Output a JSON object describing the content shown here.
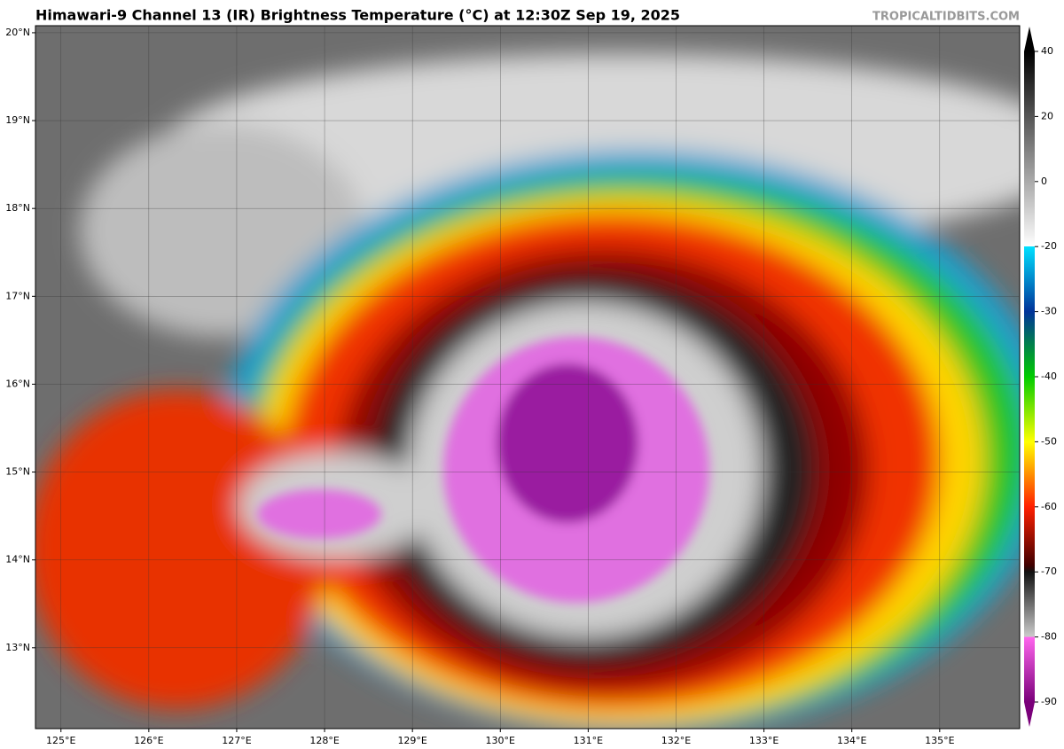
{
  "title": "Himawari-9 Channel 13 (IR) Brightness Temperature (°C) at 12:30Z Sep 19, 2025",
  "credit": "TROPICALTIDBITS.COM",
  "map": {
    "latlim": [
      12.08,
      20.08
    ],
    "lonlim": [
      124.71,
      135.91
    ],
    "lat_ticks": [
      {
        "value": 20,
        "label": "20°N"
      },
      {
        "value": 19,
        "label": "19°N"
      },
      {
        "value": 18,
        "label": "18°N"
      },
      {
        "value": 17,
        "label": "17°N"
      },
      {
        "value": 16,
        "label": "16°N"
      },
      {
        "value": 15,
        "label": "15°N"
      },
      {
        "value": 14,
        "label": "14°N"
      },
      {
        "value": 13,
        "label": "13°N"
      }
    ],
    "lon_ticks": [
      {
        "value": 125,
        "label": "125°E"
      },
      {
        "value": 126,
        "label": "126°E"
      },
      {
        "value": 127,
        "label": "127°E"
      },
      {
        "value": 128,
        "label": "128°E"
      },
      {
        "value": 129,
        "label": "129°E"
      },
      {
        "value": 130,
        "label": "130°E"
      },
      {
        "value": 131,
        "label": "131°E"
      },
      {
        "value": 132,
        "label": "132°E"
      },
      {
        "value": 133,
        "label": "133°E"
      },
      {
        "value": 134,
        "label": "134°E"
      },
      {
        "value": 135,
        "label": "135°E"
      }
    ]
  },
  "colorbar": {
    "ticks": [
      40,
      20,
      0,
      -20,
      -30,
      -40,
      -50,
      -60,
      -70,
      -80,
      -90
    ]
  }
}
